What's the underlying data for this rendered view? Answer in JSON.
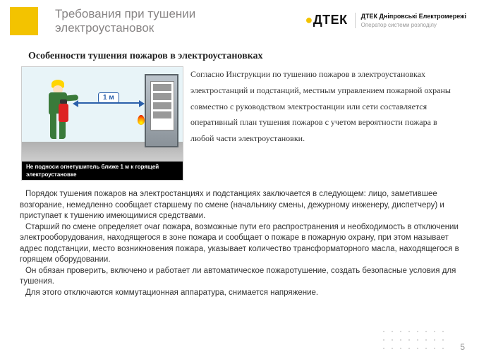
{
  "colors": {
    "accent": "#f3c300",
    "title": "#888585",
    "text": "#333333",
    "caption_bg": "#000000",
    "arrow": "#2a5faa"
  },
  "header": {
    "title_line1": "Требования при тушении",
    "title_line2": "электроустановок",
    "logo_text": "ДТЕК",
    "logo_sub_bold": "ДТЕК Дніпровські Електромережі",
    "logo_tag": "Оператор системи розподілу"
  },
  "subtitle": "Особенности тушения пожаров в электроустановках",
  "image": {
    "distance_label": "1 м",
    "caption": "Не подноси огнетушитель ближе 1 м к горящей электроустановке"
  },
  "para1": "Согласно Инструкции по тушению пожаров в электроустановках электростанций и подстанций, местным управлением пожарной охраны совместно с руководством электростанции или сети составляется оперативный план тушения пожаров с учетом вероятности пожара в любой части электроустановки.",
  "para2": {
    "p1": "Порядок тушения пожаров на электростанциях и подстанциях заключается в следующем: лицо, заметившее  возгорание, немедленно сообщает старшему по смене (начальнику смены, дежурному инженеру, диспетчеру) и приступает к тушению имеющимися средствами.",
    "p2": "Старший по смене определяет очаг пожара, возможные пути его распространения и необходимость в отключении электрооборудования, находящегося в зоне пожара и сообщает о пожаре в пожарную охрану, при этом называет адрес подстанции, место возникновения пожара, указывает количество трансформаторного  масла, находящегося в горящем оборудовании.",
    "p3": "Он обязан проверить, включено и работает ли автоматическое пожаротушение, создать безопасные условия для тушения.",
    "p4": "Для этого отключаются коммутационная аппаратура, снимается напряжение."
  },
  "page_number": "5"
}
